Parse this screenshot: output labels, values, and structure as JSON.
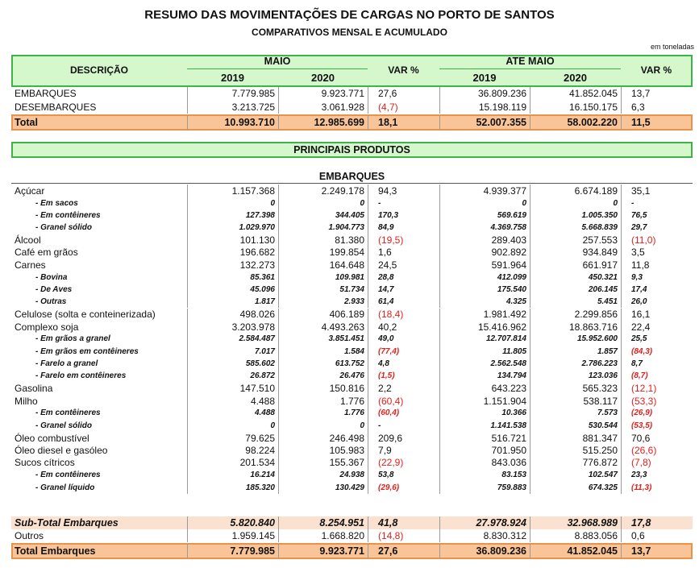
{
  "header": {
    "title": "RESUMO DAS MOVIMENTAÇÕES DE CARGAS NO PORTO DE SANTOS",
    "subtitle": "COMPARATIVOS MENSAL E ACUMULADO",
    "unit_note": "em toneladas"
  },
  "summary": {
    "columns": {
      "description": "DESCRIÇÃO",
      "month": "MAIO",
      "month_year1": "2019",
      "month_year2": "2020",
      "month_var": "VAR %",
      "ytd": "ATE MAIO",
      "ytd_year1": "2019",
      "ytd_year2": "2020",
      "ytd_var": "VAR %"
    },
    "rows": [
      [
        "EMBARQUES",
        "7.779.985",
        "9.923.771",
        "27,6",
        "36.809.236",
        "41.852.045",
        "13,7"
      ],
      [
        "DESEMBARQUES",
        "3.213.725",
        "3.061.928",
        "(4,7)",
        "15.198.119",
        "16.150.175",
        "6,3"
      ]
    ],
    "total": [
      "Total",
      "10.993.710",
      "12.985.699",
      "18,1",
      "52.007.355",
      "58.002.220",
      "11,5"
    ]
  },
  "products": {
    "title": "PRINCIPAIS PRODUTOS",
    "section": "EMBARQUES",
    "rows": [
      [
        "Açúcar",
        "1.157.368",
        "2.249.178",
        "94,3",
        "4.939.377",
        "6.674.189",
        "35,1"
      ],
      [
        "- Em sacos",
        "0",
        "0",
        "-",
        "0",
        "0",
        "-"
      ],
      [
        "- Em contêineres",
        "127.398",
        "344.405",
        "170,3",
        "569.619",
        "1.005.350",
        "76,5"
      ],
      [
        "- Granel sólido",
        "1.029.970",
        "1.904.773",
        "84,9",
        "4.369.758",
        "5.668.839",
        "29,7"
      ],
      [
        "Álcool",
        "101.130",
        "81.380",
        "(19,5)",
        "289.403",
        "257.553",
        "(11,0)"
      ],
      [
        "Café em grãos",
        "196.682",
        "199.854",
        "1,6",
        "902.892",
        "934.849",
        "3,5"
      ],
      [
        "Carnes",
        "132.273",
        "164.648",
        "24,5",
        "591.964",
        "661.917",
        "11,8"
      ],
      [
        "- Bovina",
        "85.361",
        "109.981",
        "28,8",
        "412.099",
        "450.321",
        "9,3"
      ],
      [
        "- De Aves",
        "45.096",
        "51.734",
        "14,7",
        "175.540",
        "206.145",
        "17,4"
      ],
      [
        "- Outras",
        "1.817",
        "2.933",
        "61,4",
        "4.325",
        "5.451",
        "26,0"
      ],
      [
        "Celulose (solta e conteinerizada)",
        "498.026",
        "406.189",
        "(18,4)",
        "1.981.492",
        "2.299.856",
        "16,1"
      ],
      [
        "Complexo soja",
        "3.203.978",
        "4.493.263",
        "40,2",
        "15.416.962",
        "18.863.716",
        "22,4"
      ],
      [
        "- Em grãos a granel",
        "2.584.487",
        "3.851.451",
        "49,0",
        "12.707.814",
        "15.952.600",
        "25,5"
      ],
      [
        "- Em grãos em contêineres",
        "7.017",
        "1.584",
        "(77,4)",
        "11.805",
        "1.857",
        "(84,3)"
      ],
      [
        "- Farelo a granel",
        "585.602",
        "613.752",
        "4,8",
        "2.562.548",
        "2.786.223",
        "8,7"
      ],
      [
        "- Farelo em contêineres",
        "26.872",
        "26.476",
        "(1,5)",
        "134.794",
        "123.036",
        "(8,7)"
      ],
      [
        "Gasolina",
        "147.510",
        "150.816",
        "2,2",
        "643.223",
        "565.323",
        "(12,1)"
      ],
      [
        "Milho",
        "4.488",
        "1.776",
        "(60,4)",
        "1.151.904",
        "538.117",
        "(53,3)"
      ],
      [
        "- Em contêineres",
        "4.488",
        "1.776",
        "(60,4)",
        "10.366",
        "7.573",
        "(26,9)"
      ],
      [
        "- Granel sólido",
        "0",
        "0",
        "-",
        "1.141.538",
        "530.544",
        "(53,5)"
      ],
      [
        "Óleo combustível",
        "79.625",
        "246.498",
        "209,6",
        "516.721",
        "881.347",
        "70,6"
      ],
      [
        "Óleo diesel e gasóleo",
        "98.224",
        "105.983",
        "7,9",
        "701.950",
        "515.250",
        "(26,6)"
      ],
      [
        "Sucos cítricos",
        "201.534",
        "155.367",
        "(22,9)",
        "843.036",
        "776.872",
        "(7,8)"
      ],
      [
        "- Em contêineres",
        "16.214",
        "24.938",
        "53,8",
        "83.153",
        "102.547",
        "23,3"
      ],
      [
        "- Granel líquido",
        "185.320",
        "130.429",
        "(29,6)",
        "759.883",
        "674.325",
        "(11,3)"
      ]
    ],
    "subtotal": [
      "Sub-Total Embarques",
      "5.820.840",
      "8.254.951",
      "41,8",
      "27.978.924",
      "32.968.989",
      "17,8"
    ],
    "other_rows": [
      [
        "Outros",
        "1.959.145",
        "1.668.820",
        "(14,8)",
        "8.830.312",
        "8.883.056",
        "0,6"
      ]
    ],
    "total": [
      "Total Embarques",
      "7.779.985",
      "9.923.771",
      "27,6",
      "36.809.236",
      "41.852.045",
      "13,7"
    ]
  }
}
